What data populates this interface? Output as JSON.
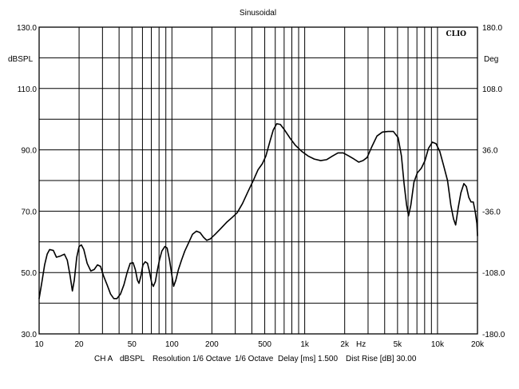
{
  "chart_data": {
    "type": "line",
    "title": "Sinusoidal",
    "brand": "CLIO",
    "left_axis_label": "dBSPL",
    "right_axis_label": "Deg",
    "x_scale": "log",
    "xlim": [
      10,
      20000
    ],
    "ylim": [
      30,
      130
    ],
    "y2lim": [
      -180,
      180
    ],
    "grid": true,
    "x_tick_labels": [
      {
        "value": 10,
        "label": "10"
      },
      {
        "value": 20,
        "label": "20"
      },
      {
        "value": 50,
        "label": "50"
      },
      {
        "value": 100,
        "label": "100"
      },
      {
        "value": 200,
        "label": "200"
      },
      {
        "value": 500,
        "label": "500"
      },
      {
        "value": 1000,
        "label": "1k"
      },
      {
        "value": 2000,
        "label": "2k"
      },
      {
        "value": 5000,
        "label": "5k"
      },
      {
        "value": 10000,
        "label": "10k"
      },
      {
        "value": 20000,
        "label": "20k"
      }
    ],
    "x_unit_label": "Hz",
    "y_tick_labels": [
      {
        "value": 130,
        "label": "130.0"
      },
      {
        "value": 110,
        "label": "110.0"
      },
      {
        "value": 90,
        "label": "90.0"
      },
      {
        "value": 70,
        "label": "70.0"
      },
      {
        "value": 50,
        "label": "50.0"
      },
      {
        "value": 30,
        "label": "30.0"
      }
    ],
    "y2_tick_labels": [
      {
        "value": 180,
        "label": "180.0"
      },
      {
        "value": 108,
        "label": "108.0"
      },
      {
        "value": 36,
        "label": "36.0"
      },
      {
        "value": -36,
        "label": "-36.0"
      },
      {
        "value": -108,
        "label": "-108.0"
      },
      {
        "value": -180,
        "label": "-180.0"
      }
    ],
    "series": [
      {
        "color": "#000000",
        "points": [
          [
            10,
            41.5
          ],
          [
            10.5,
            47
          ],
          [
            11,
            52.5
          ],
          [
            11.5,
            56
          ],
          [
            12,
            57.5
          ],
          [
            12.8,
            57.2
          ],
          [
            13.5,
            55
          ],
          [
            14.5,
            55.4
          ],
          [
            15.5,
            56
          ],
          [
            16.3,
            54
          ],
          [
            17.1,
            49
          ],
          [
            17.8,
            44
          ],
          [
            18.4,
            47.5
          ],
          [
            19.2,
            55
          ],
          [
            20,
            58.5
          ],
          [
            20.8,
            59
          ],
          [
            21.7,
            57.5
          ],
          [
            23,
            53
          ],
          [
            24.5,
            50.5
          ],
          [
            26,
            51
          ],
          [
            27.5,
            52.5
          ],
          [
            29,
            52
          ],
          [
            30.5,
            49
          ],
          [
            32.5,
            46
          ],
          [
            34.5,
            43
          ],
          [
            36.5,
            41.5
          ],
          [
            38.5,
            41.5
          ],
          [
            41,
            43
          ],
          [
            43.5,
            46
          ],
          [
            46,
            50
          ],
          [
            48.5,
            53
          ],
          [
            51,
            53.2
          ],
          [
            53,
            51
          ],
          [
            55,
            47.5
          ],
          [
            56.5,
            46.5
          ],
          [
            58.5,
            49
          ],
          [
            60.5,
            52.5
          ],
          [
            63,
            53.5
          ],
          [
            65.5,
            53
          ],
          [
            68,
            50
          ],
          [
            70.5,
            46.5
          ],
          [
            72.5,
            45.5
          ],
          [
            75,
            47
          ],
          [
            77.5,
            50.5
          ],
          [
            80.5,
            54
          ],
          [
            84,
            57
          ],
          [
            88.5,
            58.5
          ],
          [
            92,
            58
          ],
          [
            96,
            54
          ],
          [
            100,
            49
          ],
          [
            103,
            45.5
          ],
          [
            107,
            47.5
          ],
          [
            112,
            51
          ],
          [
            118,
            54
          ],
          [
            125,
            57
          ],
          [
            133,
            59.5
          ],
          [
            143,
            62.5
          ],
          [
            153,
            63.5
          ],
          [
            163,
            63
          ],
          [
            173,
            61.5
          ],
          [
            183,
            60.5
          ],
          [
            195,
            61
          ],
          [
            212,
            62.5
          ],
          [
            235,
            64.5
          ],
          [
            260,
            66.5
          ],
          [
            285,
            68
          ],
          [
            310,
            69.5
          ],
          [
            340,
            72.5
          ],
          [
            375,
            76.5
          ],
          [
            410,
            80
          ],
          [
            445,
            83.5
          ],
          [
            480,
            85.5
          ],
          [
            510,
            88
          ],
          [
            545,
            92.5
          ],
          [
            580,
            96.5
          ],
          [
            615,
            98.5
          ],
          [
            655,
            98.3
          ],
          [
            705,
            96.5
          ],
          [
            770,
            94
          ],
          [
            850,
            91.5
          ],
          [
            950,
            89.5
          ],
          [
            1060,
            88
          ],
          [
            1180,
            87
          ],
          [
            1320,
            86.5
          ],
          [
            1460,
            86.8
          ],
          [
            1620,
            88
          ],
          [
            1780,
            89
          ],
          [
            1950,
            89
          ],
          [
            2150,
            88
          ],
          [
            2350,
            87
          ],
          [
            2550,
            86
          ],
          [
            2750,
            86.5
          ],
          [
            2950,
            87.5
          ],
          [
            3200,
            91
          ],
          [
            3500,
            94.5
          ],
          [
            3850,
            95.8
          ],
          [
            4250,
            96
          ],
          [
            4650,
            96
          ],
          [
            5050,
            94
          ],
          [
            5350,
            88
          ],
          [
            5600,
            79
          ],
          [
            5850,
            72
          ],
          [
            6050,
            68.5
          ],
          [
            6300,
            72
          ],
          [
            6650,
            79.5
          ],
          [
            7050,
            82.5
          ],
          [
            7550,
            84
          ],
          [
            8050,
            86.5
          ],
          [
            8550,
            90.5
          ],
          [
            9150,
            92.5
          ],
          [
            9750,
            92
          ],
          [
            10400,
            89.5
          ],
          [
            11100,
            85
          ],
          [
            11900,
            80
          ],
          [
            12600,
            72
          ],
          [
            13200,
            67.5
          ],
          [
            13700,
            65.5
          ],
          [
            14300,
            71
          ],
          [
            15000,
            76
          ],
          [
            15800,
            79
          ],
          [
            16500,
            78
          ],
          [
            17200,
            74.5
          ],
          [
            17900,
            73
          ],
          [
            18600,
            73
          ],
          [
            19200,
            70
          ],
          [
            19800,
            66
          ],
          [
            20000,
            62
          ]
        ]
      }
    ]
  },
  "footer": {
    "channel": "CH A",
    "unit": "dBSPL",
    "resolution": "Resolution 1/6 Octave",
    "smoothing": "1/6 Octave",
    "delay": "Delay [ms] 1.500",
    "dist_rise": "Dist Rise [dB] 30.00"
  }
}
